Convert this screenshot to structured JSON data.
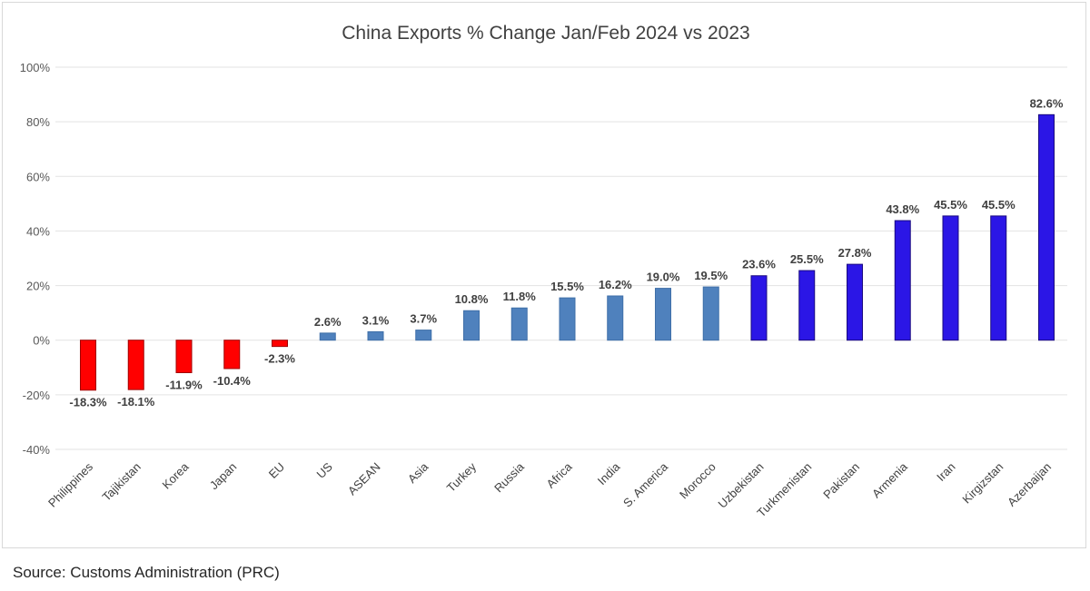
{
  "chart_data": {
    "type": "bar",
    "title": "China Exports % Change Jan/Feb 2024 vs 2023",
    "xlabel": "",
    "ylabel": "",
    "ylim": [
      -40,
      100
    ],
    "yticks": [
      100,
      80,
      60,
      40,
      20,
      0,
      -20,
      -40
    ],
    "ytick_labels": [
      "100%",
      "80%",
      "60%",
      "40%",
      "20%",
      "0%",
      "-20%",
      "-40%"
    ],
    "grid": true,
    "legend": null,
    "categories": [
      "Philippines",
      "Tajikistan",
      "Korea",
      "Japan",
      "EU",
      "US",
      "ASEAN",
      "Asia",
      "Turkey",
      "Russia",
      "Africa",
      "India",
      "S. America",
      "Morocco",
      "Uzbekistan",
      "Turkmenistan",
      "Pakistan",
      "Armenia",
      "Iran",
      "Kirgizstan",
      "Azerbaijan"
    ],
    "values": [
      -18.3,
      -18.1,
      -11.9,
      -10.4,
      -2.3,
      2.6,
      3.1,
      3.7,
      10.8,
      11.8,
      15.5,
      16.2,
      19.0,
      19.5,
      23.6,
      25.5,
      27.8,
      43.8,
      45.5,
      45.5,
      82.6
    ],
    "data_labels": [
      "-18.3%",
      "-18.1%",
      "-11.9%",
      "-10.4%",
      "-2.3%",
      "2.6%",
      "3.1%",
      "3.7%",
      "10.8%",
      "11.8%",
      "15.5%",
      "16.2%",
      "19.0%",
      "19.5%",
      "23.6%",
      "25.5%",
      "27.8%",
      "43.8%",
      "45.5%",
      "45.5%",
      "82.6%"
    ],
    "bar_colors": [
      "#ff0000",
      "#ff0000",
      "#ff0000",
      "#ff0000",
      "#ff0000",
      "#4f81bd",
      "#4f81bd",
      "#4f81bd",
      "#4f81bd",
      "#4f81bd",
      "#4f81bd",
      "#4f81bd",
      "#4f81bd",
      "#4f81bd",
      "#2b16e6",
      "#2b16e6",
      "#2b16e6",
      "#2b16e6",
      "#2b16e6",
      "#2b16e6",
      "#2b16e6"
    ]
  },
  "source": "Source: Customs Administration  (PRC)"
}
